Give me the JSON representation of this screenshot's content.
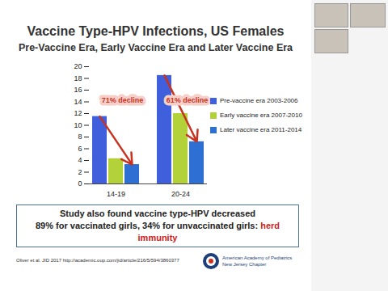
{
  "chart_data": {
    "type": "bar",
    "title": "Vaccine Type-HPV Infections, US Females",
    "subtitle": "Pre-Vaccine Era, Early Vaccine Era and Later Vaccine Era",
    "categories": [
      "14-19",
      "20-24"
    ],
    "series": [
      {
        "name": "Pre-vaccine era 2003-2006",
        "color": "#3f5fdc",
        "values": [
          11.5,
          18.5
        ]
      },
      {
        "name": "Early vaccine era 2007-2010",
        "color": "#b3d23a",
        "values": [
          4.3,
          12
        ]
      },
      {
        "name": "Later vaccine era 2011-2014",
        "color": "#2d6fd2",
        "values": [
          3.3,
          7.2
        ]
      }
    ],
    "ylim": [
      0,
      20
    ],
    "yticks": [
      0,
      2,
      4,
      6,
      8,
      10,
      12,
      14,
      16,
      18,
      20
    ],
    "grid": false,
    "legend": "right",
    "annotations": [
      {
        "text": "71% decline",
        "category": "14-19"
      },
      {
        "text": "61% decline",
        "category": "20-24"
      }
    ],
    "footnote": [
      "Study also found vaccine type-HPV decreased",
      "89% for vaccinated girls, 34% for unvaccinated girls:"
    ],
    "highlight": "herd immunity",
    "source": "Oliver et al. JID 2017 http://academic.oup.com/jid/article/216/5/594/3860377",
    "logo": [
      "American Academy of Pediatrics",
      "New Jersey Chapter"
    ]
  }
}
